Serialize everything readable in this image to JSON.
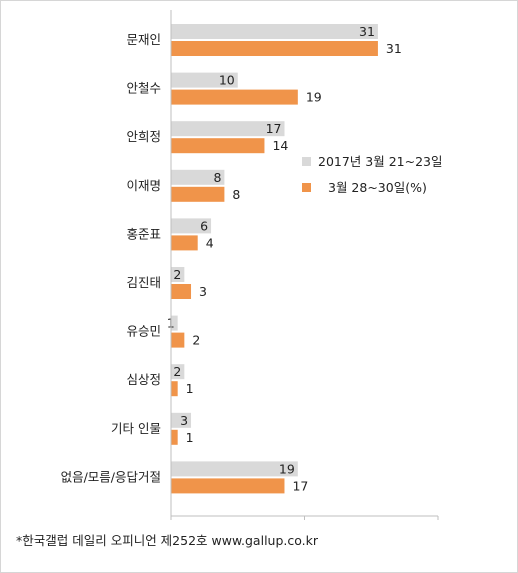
{
  "chart_data": {
    "type": "bar",
    "orientation": "horizontal",
    "categories": [
      "문재인",
      "안철수",
      "안희정",
      "이재명",
      "홍준표",
      "김진태",
      "유승민",
      "심상정",
      "기타 인물",
      "없음/모름/응답거절"
    ],
    "series": [
      {
        "name": "2017년 3월 21~23일",
        "color": "#d9d9d9",
        "values": [
          31,
          10,
          17,
          8,
          6,
          2,
          1,
          2,
          3,
          19
        ]
      },
      {
        "name": "3월 28~30일(%)",
        "color": "#f0944a",
        "values": [
          31,
          19,
          14,
          8,
          4,
          3,
          2,
          1,
          1,
          17
        ]
      }
    ],
    "xlim": [
      0,
      40
    ],
    "xticks": [
      0,
      20,
      40
    ],
    "grid": false,
    "legend_position": "right"
  },
  "footnote": "*한국갤럽 데일리 오피니언 제252호 www.gallup.co.kr"
}
